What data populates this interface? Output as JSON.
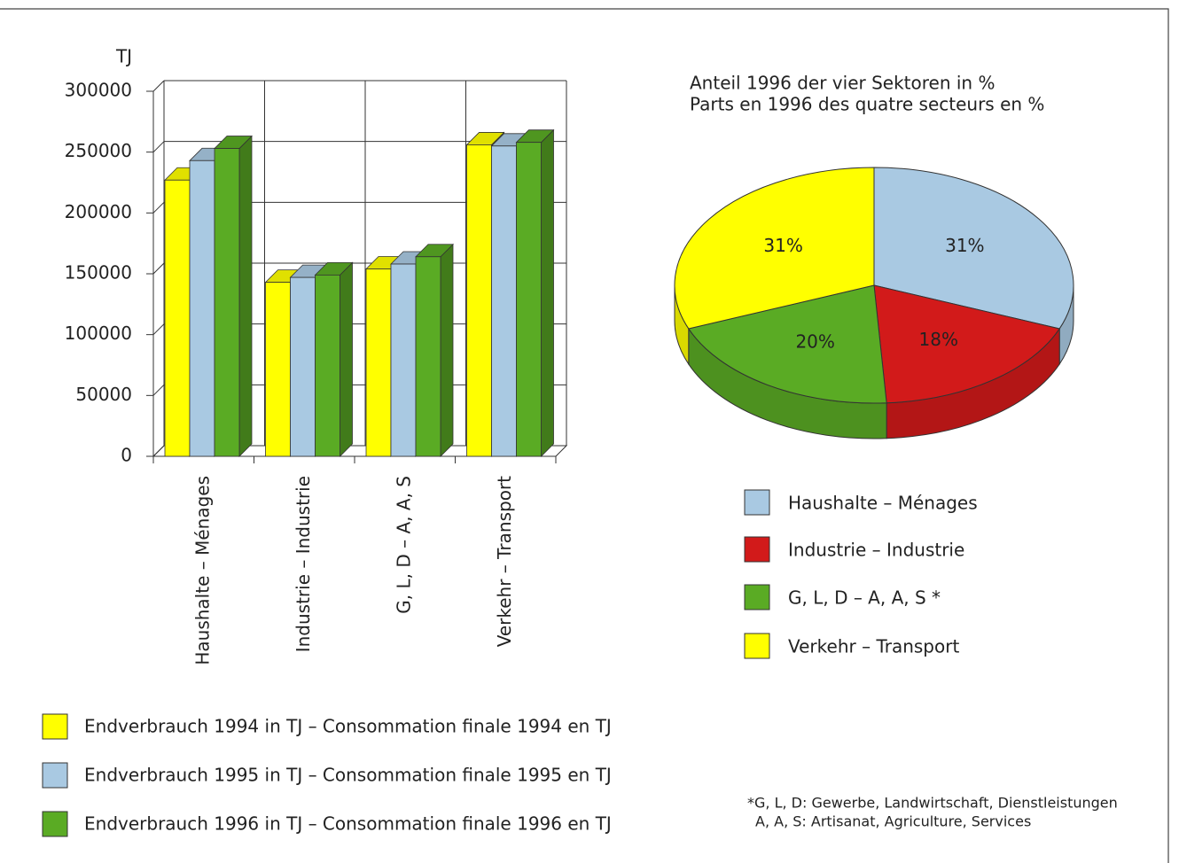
{
  "chart_data": [
    {
      "type": "bar3d",
      "y_label": "TJ",
      "categories": [
        "Haushalte – Ménages",
        "Industrie – Industrie",
        "G, L, D – A, A, S",
        "Verkehr – Transport"
      ],
      "series": [
        {
          "name": "Endverbrauch 1994 in TJ – Consommation finale 1994 en TJ",
          "color": "#ffff00",
          "values": [
            227000,
            143000,
            154000,
            256000
          ]
        },
        {
          "name": "Endverbrauch 1995 in TJ – Consommation finale 1995 en TJ",
          "color": "#a9c9e2",
          "values": [
            243000,
            147000,
            158000,
            255000
          ]
        },
        {
          "name": "Endverbrauch 1996 in TJ – Consommation finale 1996 en TJ",
          "color": "#5aab24",
          "values": [
            253000,
            149000,
            164000,
            258000
          ]
        }
      ],
      "ylim": [
        0,
        300000
      ],
      "yticks": [
        0,
        50000,
        100000,
        150000,
        200000,
        250000,
        300000
      ],
      "grid": true
    },
    {
      "type": "pie3d",
      "title": [
        "Anteil 1996 der vier Sektoren in %",
        "Parts en 1996 des quatre secteurs en %"
      ],
      "categories": [
        "Haushalte – Ménages",
        "Industrie – Industrie",
        "G, L, D – A, A, S *",
        "Verkehr – Transport"
      ],
      "values": [
        31,
        18,
        20,
        31
      ],
      "value_labels": [
        "31%",
        "18%",
        "20%",
        "31%"
      ],
      "colors": [
        "#a9c9e2",
        "#d21a1a",
        "#5aab24",
        "#ffff00"
      ],
      "note": [
        "*G, L, D: Gewerbe, Landwirtschaft, Dienstleistungen",
        "A, A, S: Artisanat, Agriculture, Services"
      ]
    }
  ]
}
